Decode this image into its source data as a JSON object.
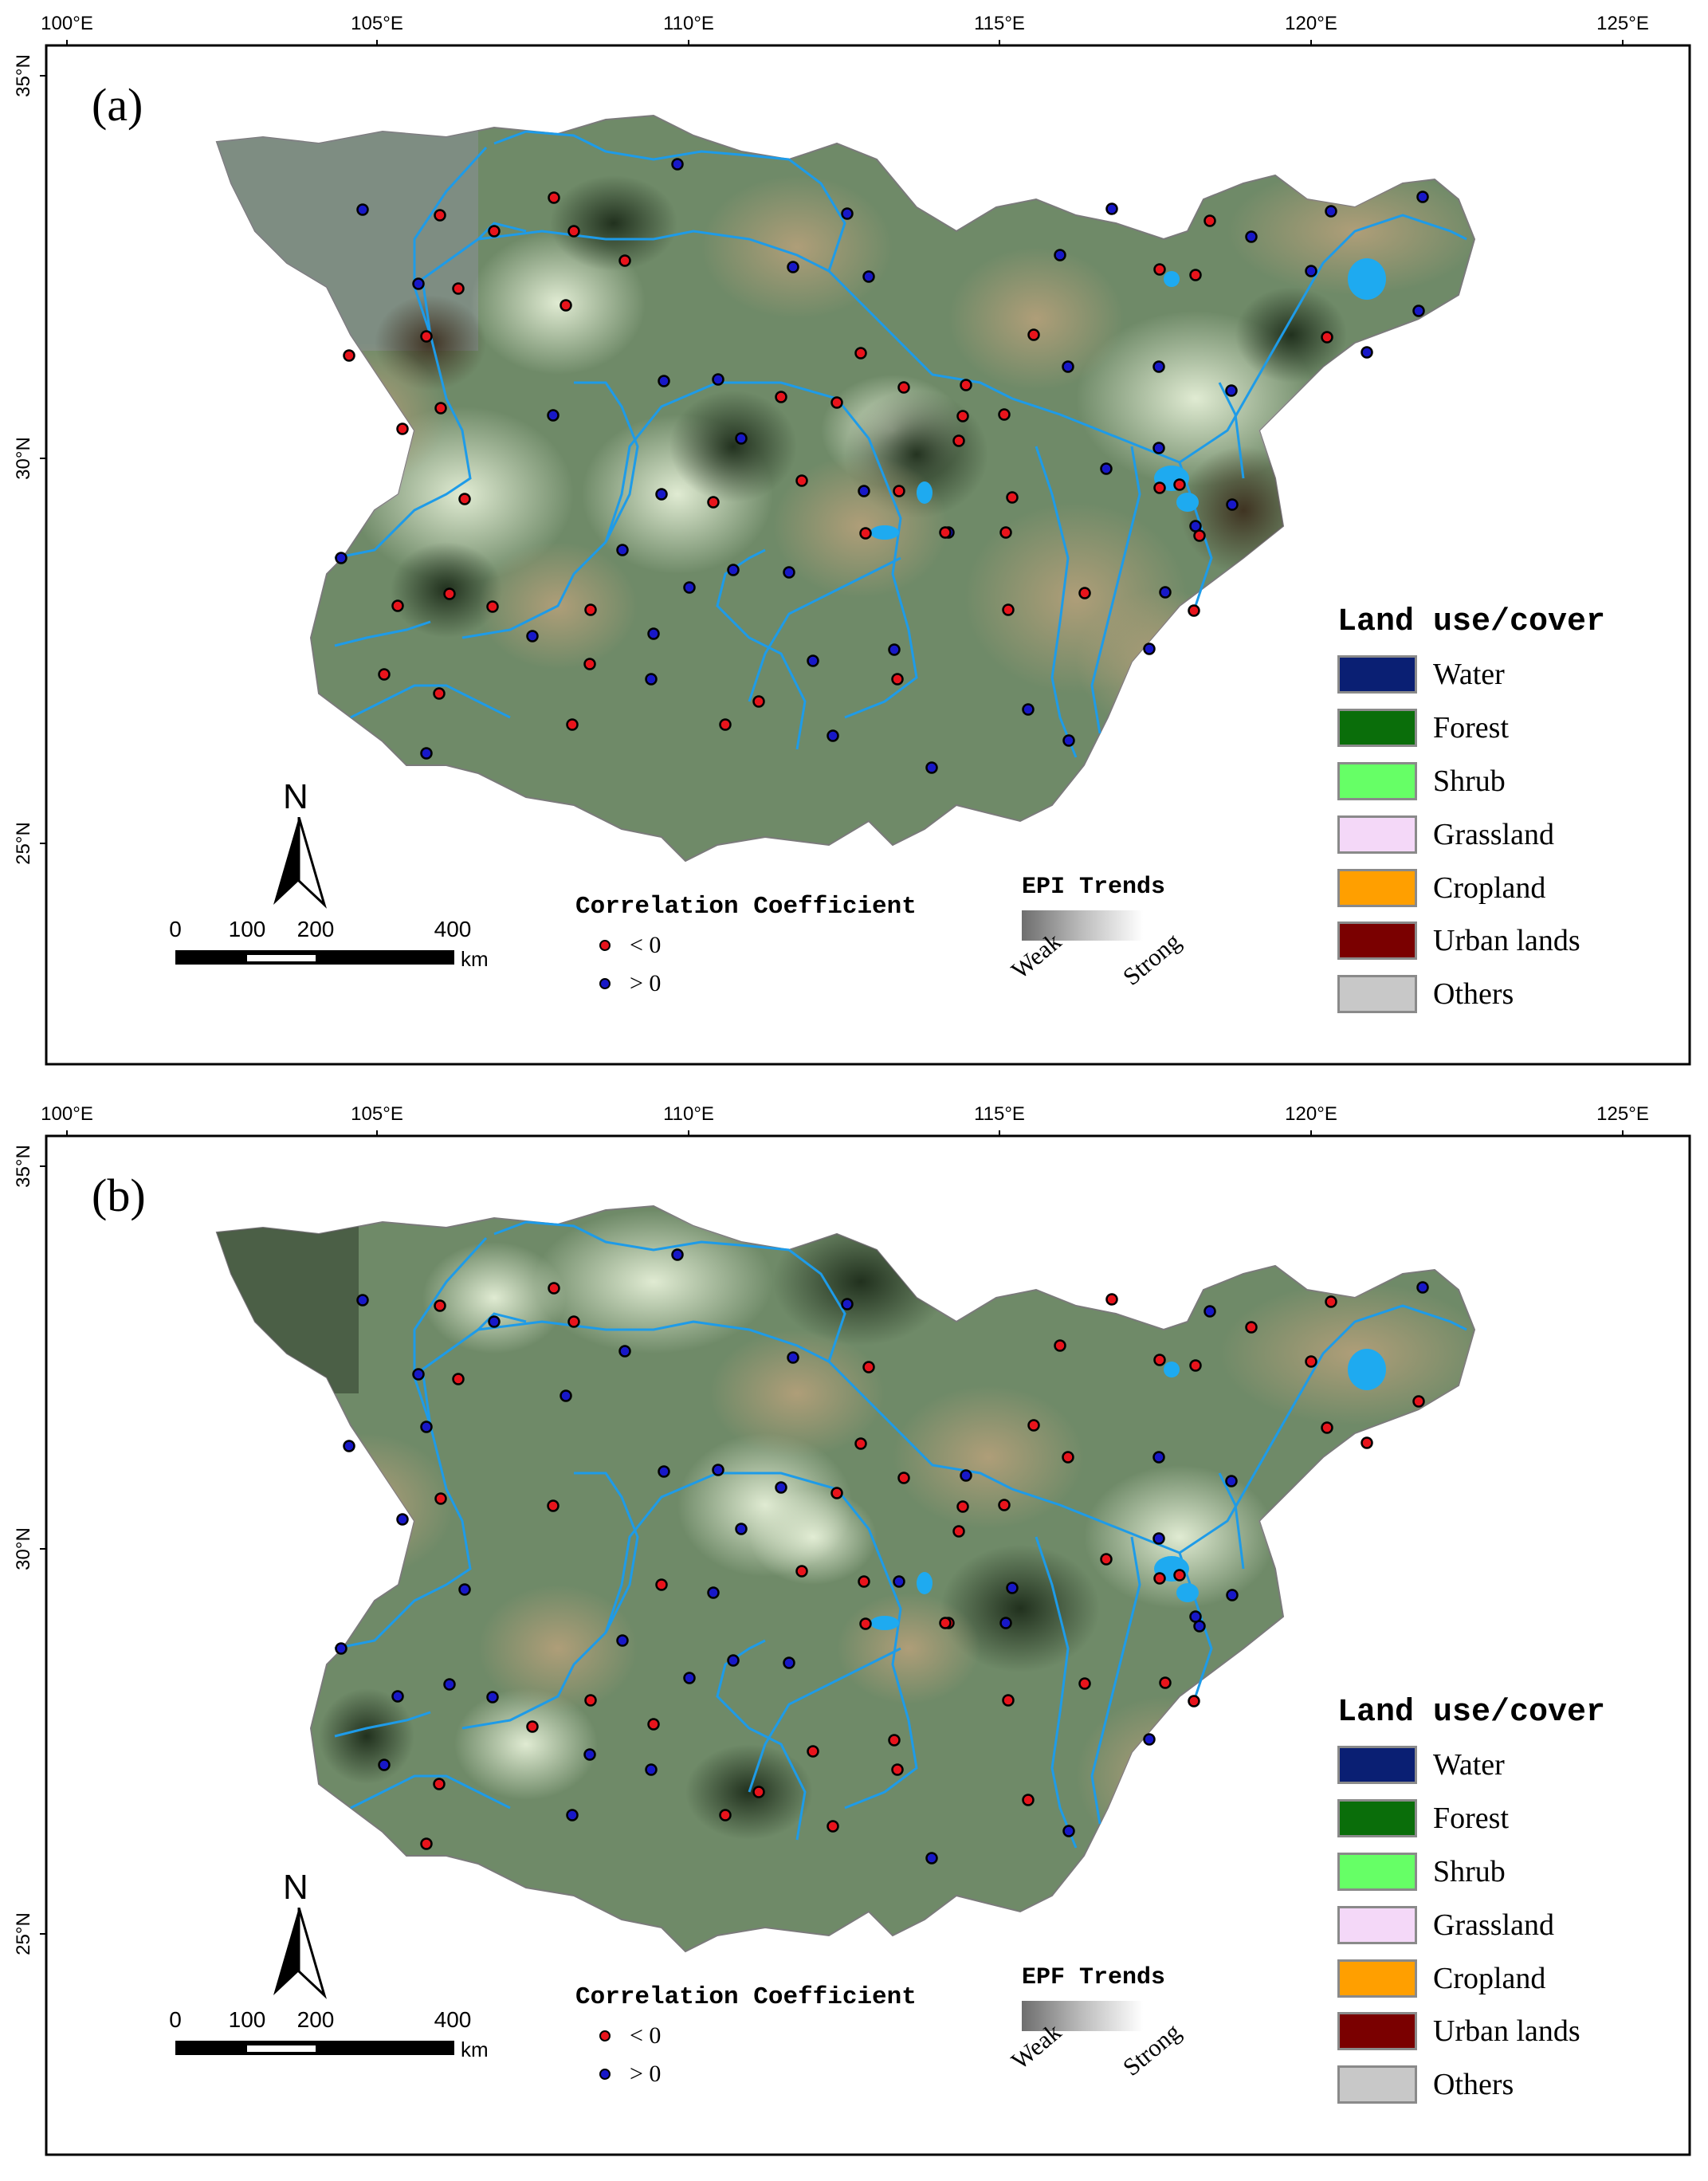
{
  "axes": {
    "lon_labels": [
      "100°E",
      "105°E",
      "110°E",
      "115°E",
      "120°E",
      "125°E"
    ],
    "lat_labels": [
      "35°N",
      "30°N",
      "25°N"
    ]
  },
  "panels": [
    {
      "id": "a",
      "label": "(a)",
      "trend_title": "EPI Trends",
      "trend_low": "Weak",
      "trend_high": "Strong"
    },
    {
      "id": "b",
      "label": "(b)",
      "trend_title": "EPF Trends",
      "trend_low": "Weak",
      "trend_high": "Strong"
    }
  ],
  "legend": {
    "title": "Land use/cover",
    "items": [
      {
        "name": "Water",
        "color": "#0a1f73"
      },
      {
        "name": "Forest",
        "color": "#0a6e0a"
      },
      {
        "name": "Shrub",
        "color": "#66ff66"
      },
      {
        "name": "Grassland",
        "color": "#f4d8f8"
      },
      {
        "name": "Cropland",
        "color": "#ff9f00"
      },
      {
        "name": "Urban lands",
        "color": "#7a0000"
      },
      {
        "name": "Others",
        "color": "#c8c8c8"
      }
    ]
  },
  "correlation_legend": {
    "title": "Correlation Coefficient",
    "negative": "< 0",
    "positive": "> 0",
    "negative_color": "#e8141c",
    "positive_color": "#1818c8"
  },
  "scale_bar": {
    "ticks": [
      "0",
      "100",
      "200",
      "400"
    ],
    "unit": "km"
  },
  "north_arrow": {
    "label": "N"
  },
  "colors": {
    "river": "#1e9be8",
    "lake": "#1eaaf0",
    "frame": "#000000",
    "map_fill": "#6f8a68"
  }
}
